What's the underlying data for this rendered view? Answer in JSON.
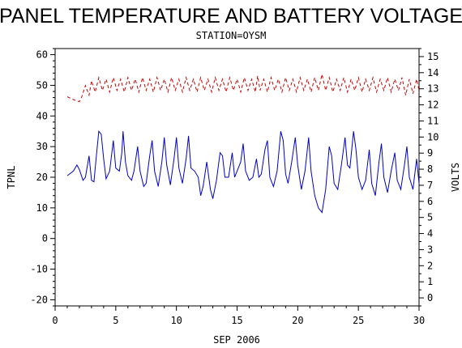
{
  "chart_data": {
    "type": "line",
    "title": "PANEL TEMPERATURE AND BATTERY VOLTAGE",
    "subtitle": "STATION=OYSM",
    "xlabel": "SEP 2006",
    "ylabel_left": "TPNL",
    "ylabel_right": "VOLTS",
    "xlim": [
      0,
      30
    ],
    "ylim_left": [
      -22,
      62
    ],
    "ylim_right": [
      -0.5,
      15.5
    ],
    "x_ticks": [
      0,
      5,
      10,
      15,
      20,
      25,
      30
    ],
    "y_ticks_left": [
      -20,
      -10,
      0,
      10,
      20,
      30,
      40,
      50,
      60
    ],
    "y_ticks_right": [
      0,
      1,
      2,
      3,
      4,
      5,
      6,
      7,
      8,
      9,
      10,
      11,
      12,
      13,
      14,
      15
    ],
    "grid": false,
    "legend": "none",
    "series": [
      {
        "axis": "left",
        "color": "#0000cc",
        "style": "solid",
        "points": [
          [
            1.0,
            20.5
          ],
          [
            1.5,
            22.0
          ],
          [
            1.8,
            24.0
          ],
          [
            2.0,
            22.5
          ],
          [
            2.3,
            19.0
          ],
          [
            2.5,
            20.0
          ],
          [
            2.8,
            27.0
          ],
          [
            3.0,
            19.0
          ],
          [
            3.2,
            18.5
          ],
          [
            3.4,
            27.0
          ],
          [
            3.6,
            35.0
          ],
          [
            3.8,
            34.0
          ],
          [
            4.0,
            26.0
          ],
          [
            4.2,
            19.5
          ],
          [
            4.5,
            22.0
          ],
          [
            4.8,
            32.0
          ],
          [
            5.0,
            23.0
          ],
          [
            5.3,
            22.0
          ],
          [
            5.5,
            28.0
          ],
          [
            5.6,
            35.0
          ],
          [
            5.8,
            25.0
          ],
          [
            6.0,
            20.5
          ],
          [
            6.3,
            19.0
          ],
          [
            6.5,
            22.0
          ],
          [
            6.8,
            30.0
          ],
          [
            7.0,
            22.0
          ],
          [
            7.3,
            17.0
          ],
          [
            7.5,
            18.0
          ],
          [
            7.8,
            27.0
          ],
          [
            8.0,
            32.0
          ],
          [
            8.2,
            22.0
          ],
          [
            8.5,
            17.0
          ],
          [
            8.8,
            25.0
          ],
          [
            9.0,
            33.0
          ],
          [
            9.2,
            24.0
          ],
          [
            9.5,
            17.5
          ],
          [
            9.8,
            26.0
          ],
          [
            10.0,
            33.0
          ],
          [
            10.2,
            23.0
          ],
          [
            10.5,
            18.0
          ],
          [
            10.8,
            26.0
          ],
          [
            11.0,
            33.5
          ],
          [
            11.2,
            23.0
          ],
          [
            11.5,
            22.0
          ],
          [
            11.8,
            20.0
          ],
          [
            12.0,
            14.0
          ],
          [
            12.2,
            17.0
          ],
          [
            12.5,
            25.0
          ],
          [
            12.8,
            16.0
          ],
          [
            13.0,
            13.0
          ],
          [
            13.3,
            19.0
          ],
          [
            13.6,
            28.0
          ],
          [
            13.8,
            27.0
          ],
          [
            14.0,
            20.0
          ],
          [
            14.3,
            20.0
          ],
          [
            14.6,
            28.0
          ],
          [
            14.8,
            20.0
          ],
          [
            15.0,
            22.0
          ],
          [
            15.3,
            25.0
          ],
          [
            15.5,
            31.0
          ],
          [
            15.7,
            22.0
          ],
          [
            16.0,
            19.0
          ],
          [
            16.3,
            20.0
          ],
          [
            16.6,
            26.0
          ],
          [
            16.8,
            20.0
          ],
          [
            17.0,
            21.0
          ],
          [
            17.3,
            29.0
          ],
          [
            17.5,
            32.0
          ],
          [
            17.7,
            20.0
          ],
          [
            18.0,
            17.0
          ],
          [
            18.3,
            22.0
          ],
          [
            18.6,
            35.0
          ],
          [
            18.8,
            32.0
          ],
          [
            19.0,
            21.0
          ],
          [
            19.2,
            18.0
          ],
          [
            19.5,
            25.0
          ],
          [
            19.8,
            33.0
          ],
          [
            20.0,
            24.0
          ],
          [
            20.3,
            16.0
          ],
          [
            20.6,
            22.0
          ],
          [
            20.9,
            33.0
          ],
          [
            21.1,
            22.0
          ],
          [
            21.4,
            14.0
          ],
          [
            21.7,
            10.0
          ],
          [
            22.0,
            8.5
          ],
          [
            22.3,
            16.0
          ],
          [
            22.6,
            30.0
          ],
          [
            22.8,
            27.0
          ],
          [
            23.0,
            18.0
          ],
          [
            23.3,
            16.0
          ],
          [
            23.6,
            24.0
          ],
          [
            23.9,
            33.0
          ],
          [
            24.1,
            24.0
          ],
          [
            24.3,
            23.0
          ],
          [
            24.6,
            35.0
          ],
          [
            24.8,
            29.0
          ],
          [
            25.0,
            20.0
          ],
          [
            25.3,
            16.0
          ],
          [
            25.6,
            19.0
          ],
          [
            25.9,
            29.0
          ],
          [
            26.1,
            18.0
          ],
          [
            26.4,
            14.0
          ],
          [
            26.7,
            25.0
          ],
          [
            26.9,
            31.0
          ],
          [
            27.1,
            20.0
          ],
          [
            27.4,
            15.0
          ],
          [
            27.7,
            22.0
          ],
          [
            28.0,
            28.0
          ],
          [
            28.2,
            19.0
          ],
          [
            28.5,
            16.0
          ],
          [
            28.8,
            24.0
          ],
          [
            29.0,
            30.0
          ],
          [
            29.2,
            20.0
          ],
          [
            29.5,
            16.0
          ],
          [
            29.8,
            26.0
          ],
          [
            30.0,
            18.0
          ],
          [
            30.2,
            12.0
          ],
          [
            30.4,
            10.5
          ]
        ]
      },
      {
        "axis": "right",
        "color": "#cc0000",
        "style": "dashed",
        "points": [
          [
            1.0,
            12.5
          ],
          [
            1.6,
            12.3
          ],
          [
            2.0,
            12.2
          ],
          [
            2.2,
            12.5
          ],
          [
            2.5,
            13.2
          ],
          [
            2.8,
            12.6
          ],
          [
            3.0,
            13.5
          ],
          [
            3.3,
            12.8
          ],
          [
            3.6,
            13.7
          ],
          [
            3.9,
            12.9
          ],
          [
            4.2,
            13.6
          ],
          [
            4.5,
            12.8
          ],
          [
            4.8,
            13.7
          ],
          [
            5.1,
            12.9
          ],
          [
            5.4,
            13.6
          ],
          [
            5.7,
            12.8
          ],
          [
            6.0,
            13.7
          ],
          [
            6.3,
            12.9
          ],
          [
            6.6,
            13.6
          ],
          [
            6.9,
            12.8
          ],
          [
            7.2,
            13.7
          ],
          [
            7.5,
            12.9
          ],
          [
            7.8,
            13.6
          ],
          [
            8.1,
            12.8
          ],
          [
            8.4,
            13.7
          ],
          [
            8.7,
            12.9
          ],
          [
            9.0,
            13.6
          ],
          [
            9.3,
            12.8
          ],
          [
            9.6,
            13.7
          ],
          [
            9.9,
            12.9
          ],
          [
            10.2,
            13.6
          ],
          [
            10.5,
            12.8
          ],
          [
            10.8,
            13.7
          ],
          [
            11.1,
            12.9
          ],
          [
            11.4,
            13.6
          ],
          [
            11.7,
            12.8
          ],
          [
            12.0,
            13.7
          ],
          [
            12.3,
            12.9
          ],
          [
            12.6,
            13.6
          ],
          [
            12.9,
            12.8
          ],
          [
            13.2,
            13.7
          ],
          [
            13.5,
            12.9
          ],
          [
            13.8,
            13.6
          ],
          [
            14.1,
            12.8
          ],
          [
            14.4,
            13.7
          ],
          [
            14.7,
            12.9
          ],
          [
            15.0,
            13.6
          ],
          [
            15.3,
            12.8
          ],
          [
            15.6,
            13.7
          ],
          [
            15.9,
            12.9
          ],
          [
            16.2,
            13.6
          ],
          [
            16.5,
            12.8
          ],
          [
            16.7,
            13.8
          ],
          [
            16.9,
            12.9
          ],
          [
            17.2,
            13.6
          ],
          [
            17.5,
            12.8
          ],
          [
            17.8,
            13.7
          ],
          [
            18.1,
            12.9
          ],
          [
            18.4,
            13.6
          ],
          [
            18.7,
            12.8
          ],
          [
            19.0,
            13.7
          ],
          [
            19.3,
            12.9
          ],
          [
            19.6,
            13.6
          ],
          [
            19.9,
            12.8
          ],
          [
            20.2,
            13.7
          ],
          [
            20.5,
            12.9
          ],
          [
            20.8,
            13.6
          ],
          [
            21.1,
            12.8
          ],
          [
            21.4,
            13.7
          ],
          [
            21.7,
            12.9
          ],
          [
            22.0,
            13.9
          ],
          [
            22.3,
            12.9
          ],
          [
            22.6,
            13.7
          ],
          [
            22.9,
            12.8
          ],
          [
            23.2,
            13.6
          ],
          [
            23.5,
            12.9
          ],
          [
            23.8,
            13.7
          ],
          [
            24.1,
            12.8
          ],
          [
            24.4,
            13.6
          ],
          [
            24.7,
            12.9
          ],
          [
            25.0,
            13.7
          ],
          [
            25.3,
            12.8
          ],
          [
            25.6,
            13.6
          ],
          [
            25.9,
            12.9
          ],
          [
            26.2,
            13.7
          ],
          [
            26.5,
            12.8
          ],
          [
            26.8,
            13.6
          ],
          [
            27.1,
            12.9
          ],
          [
            27.4,
            13.7
          ],
          [
            27.7,
            12.8
          ],
          [
            28.0,
            13.6
          ],
          [
            28.3,
            12.9
          ],
          [
            28.6,
            13.7
          ],
          [
            28.9,
            12.6
          ],
          [
            29.2,
            13.6
          ],
          [
            29.5,
            12.7
          ],
          [
            29.8,
            13.6
          ],
          [
            30.0,
            12.9
          ]
        ]
      }
    ]
  }
}
